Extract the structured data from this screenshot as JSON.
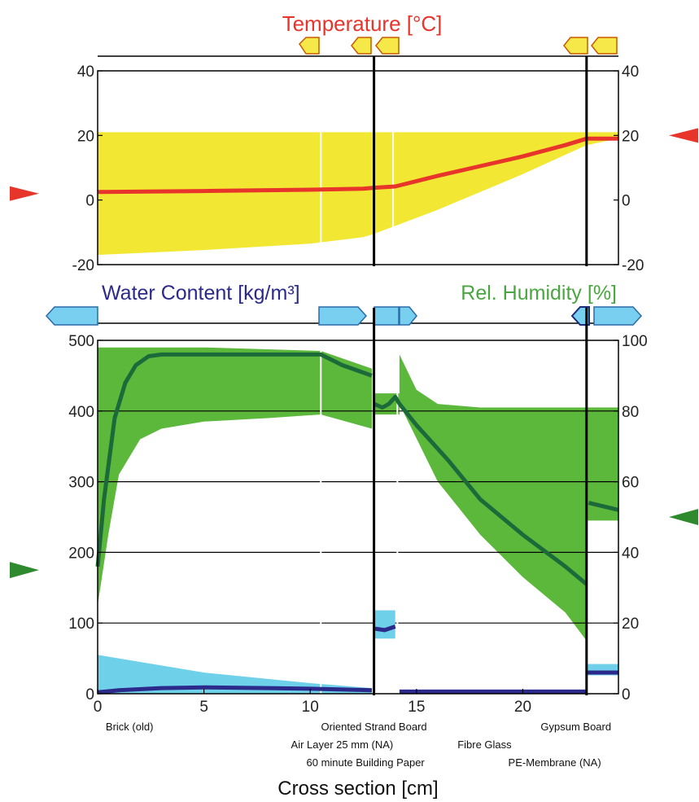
{
  "colors": {
    "temperature": "#e8352b",
    "temp_range": "#f2e833",
    "rh_band": "#5cb83b",
    "rh_line": "#1c6a3a",
    "wc_band": "#6fd0ea",
    "wc_line": "#2b2a8a",
    "marker_blue": "#79cfef",
    "marker_yellow": "#f7e84a",
    "marker_green": "#2f8a2f"
  },
  "chart_data": [
    {
      "type": "area",
      "title": "Temperature [°C]",
      "xlim": [
        0,
        24.5
      ],
      "ylim": [
        -20,
        40
      ],
      "y_ticks": [
        "40",
        "20",
        "0",
        "-20"
      ],
      "y2_ticks": [
        "40",
        "20",
        "0",
        "-20"
      ],
      "boundaries_cm": [
        13.0,
        23.0
      ],
      "series": [
        {
          "kind": "line",
          "x": [
            0,
            5,
            10,
            12.5,
            13.0,
            14.0,
            16,
            18,
            20,
            22,
            23,
            24.5
          ],
          "values": [
            2.5,
            2.8,
            3.2,
            3.5,
            3.8,
            4.2,
            7.5,
            10.5,
            13.5,
            17,
            19,
            19
          ]
        },
        {
          "kind": "band_upper",
          "x": [
            0,
            24.5
          ],
          "values": [
            21,
            21
          ]
        },
        {
          "kind": "band_lower",
          "x": [
            0,
            5,
            10,
            12.5,
            13.0,
            16,
            20,
            23,
            24.5
          ],
          "values": [
            -17,
            -15.5,
            -13.5,
            -11.5,
            -10.5,
            -3,
            8,
            17,
            19
          ]
        }
      ],
      "outside_marker": {
        "side": "left",
        "value": 2
      },
      "inside_marker": {
        "side": "right",
        "value": 20
      }
    },
    {
      "type": "line",
      "title_left": "Water Content [kg/m³]",
      "title_right": "Rel. Humidity [%]",
      "xlabel": "Cross section [cm]",
      "xlim": [
        0,
        24.5
      ],
      "x_ticks": [
        "0",
        "5",
        "10",
        "15",
        "20"
      ],
      "ylim": [
        0,
        500
      ],
      "y_ticks": [
        "500",
        "400",
        "300",
        "200",
        "100",
        "0"
      ],
      "y2lim": [
        0,
        100
      ],
      "y2_ticks": [
        "100",
        "80",
        "60",
        "40",
        "20",
        "0"
      ],
      "boundaries_cm": [
        13.0,
        23.0
      ],
      "series": [
        {
          "kind": "rh_line",
          "x": [
            0,
            0.3,
            0.8,
            1.3,
            1.8,
            2.4,
            3,
            5,
            8,
            10.5,
            11.5,
            12.9
          ],
          "values": [
            36,
            55,
            78,
            88,
            93,
            95.5,
            96,
            96,
            96,
            96,
            93,
            90
          ]
        },
        {
          "kind": "rh_line",
          "x": [
            13.0,
            13.4,
            13.7,
            14.0,
            14.2
          ],
          "values": [
            82,
            81,
            82,
            84,
            82
          ]
        },
        {
          "kind": "rh_line",
          "x": [
            14.2,
            15,
            16.5,
            18,
            20,
            22,
            23
          ],
          "values": [
            82,
            76,
            66,
            55,
            45,
            36,
            31
          ]
        },
        {
          "kind": "rh_line",
          "x": [
            23.1,
            24.5
          ],
          "values": [
            54,
            52
          ]
        },
        {
          "kind": "rh_band_upper",
          "x": [
            0,
            1,
            5,
            10.5,
            12.9
          ],
          "values": [
            98,
            98,
            98,
            97,
            92
          ]
        },
        {
          "kind": "rh_band_lower",
          "x": [
            0,
            0.5,
            1,
            2,
            3,
            5,
            8,
            10.5,
            12.9
          ],
          "values": [
            25,
            45,
            62,
            72,
            75,
            77,
            78,
            79,
            75
          ]
        },
        {
          "kind": "rh_band_upper",
          "x": [
            14.2,
            15,
            16,
            18,
            20,
            22,
            23
          ],
          "values": [
            96,
            86,
            82,
            81,
            81,
            81,
            81
          ]
        },
        {
          "kind": "rh_band_lower",
          "x": [
            14.2,
            16,
            18,
            20,
            22,
            23
          ],
          "values": [
            82,
            60,
            45,
            33,
            23,
            15
          ]
        },
        {
          "kind": "wc_band_upper",
          "x": [
            0,
            5,
            10,
            12.9
          ],
          "values": [
            55,
            30,
            15,
            8
          ]
        },
        {
          "kind": "wc_line",
          "x": [
            0,
            1,
            3,
            5,
            8,
            10,
            12.9
          ],
          "values": [
            2,
            5,
            8,
            9,
            8,
            7,
            5
          ]
        },
        {
          "kind": "wc_line",
          "x": [
            13.05,
            13.5,
            14.0
          ],
          "values": [
            92,
            90,
            95
          ]
        },
        {
          "kind": "wc_line",
          "x": [
            14.2,
            23
          ],
          "values": [
            3,
            3
          ]
        },
        {
          "kind": "wc_line",
          "x": [
            23.05,
            24.5
          ],
          "values": [
            30,
            30
          ]
        }
      ],
      "outside_marker": {
        "side": "left",
        "value": 35
      },
      "inside_marker": {
        "side": "right",
        "value": 50
      },
      "materials": [
        {
          "name": "Brick (old)",
          "row": 1,
          "x": 1.5
        },
        {
          "name": "Oriented Strand Board",
          "row": 1,
          "x": 13.0
        },
        {
          "name": "Gypsum Board",
          "row": 1,
          "x": 22.5
        },
        {
          "name": "Air Layer 25 mm (NA)",
          "row": 2,
          "x": 11.5
        },
        {
          "name": "Fibre Glass",
          "row": 2,
          "x": 18.2
        },
        {
          "name": "60 minute Building Paper",
          "row": 3,
          "x": 12.6
        },
        {
          "name": "PE-Membrane (NA)",
          "row": 3,
          "x": 21.5
        }
      ]
    }
  ]
}
